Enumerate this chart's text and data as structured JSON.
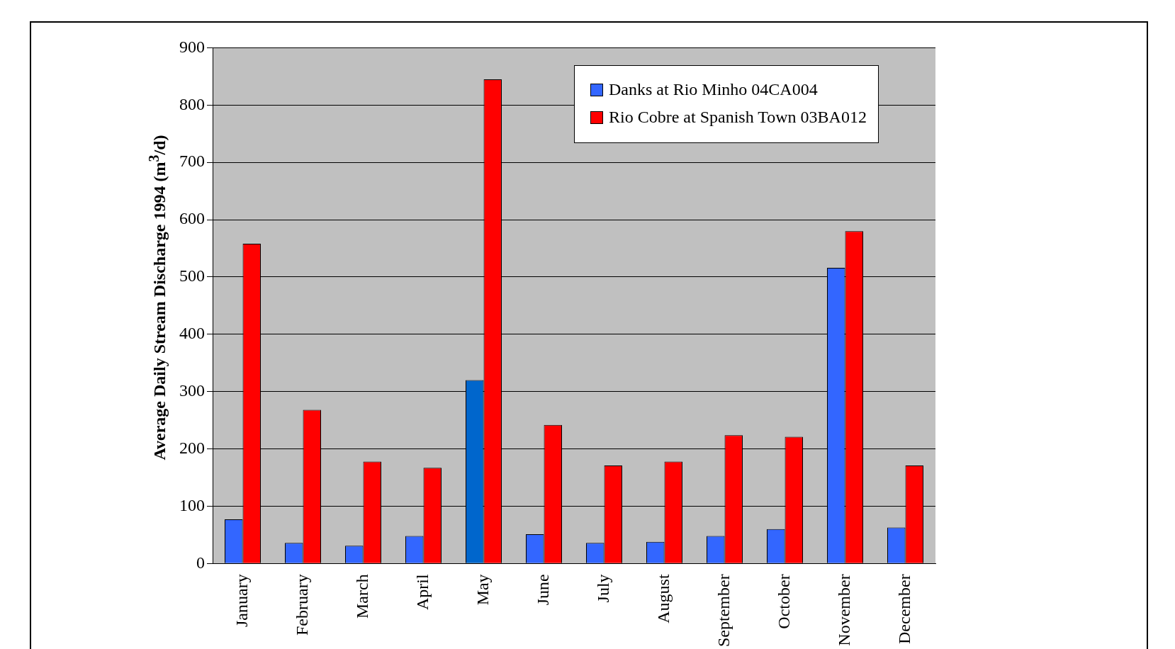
{
  "chart_data": {
    "type": "bar",
    "ylabel": "Average Daily Stream Discharge 1994 (m$^{3}$/d)",
    "categories": [
      "January",
      "February",
      "March",
      "April",
      "May",
      "June",
      "July",
      "August",
      "September",
      "October",
      "November",
      "December"
    ],
    "series": [
      {
        "name": "Danks at Rio Minho 04CA004",
        "color": "#3366ff",
        "colors": [
          "#3366ff",
          "#3366ff",
          "#3366ff",
          "#3366ff",
          "#0066cc",
          "#3366ff",
          "#3366ff",
          "#3366ff",
          "#3366ff",
          "#3366ff",
          "#3366ff",
          "#3366ff"
        ],
        "values": [
          77,
          36,
          31,
          48,
          320,
          51,
          36,
          38,
          48,
          60,
          516,
          63
        ]
      },
      {
        "name": "Rio Cobre at Spanish Town 03BA012",
        "color": "#ff0000",
        "values": [
          558,
          268,
          178,
          167,
          845,
          242,
          171,
          178,
          224,
          221,
          580,
          171
        ]
      }
    ],
    "ylim": [
      0,
      900
    ],
    "yticks": [
      0,
      100,
      200,
      300,
      400,
      500,
      600,
      700,
      800,
      900
    ],
    "grid": "y",
    "legend": "top right"
  }
}
